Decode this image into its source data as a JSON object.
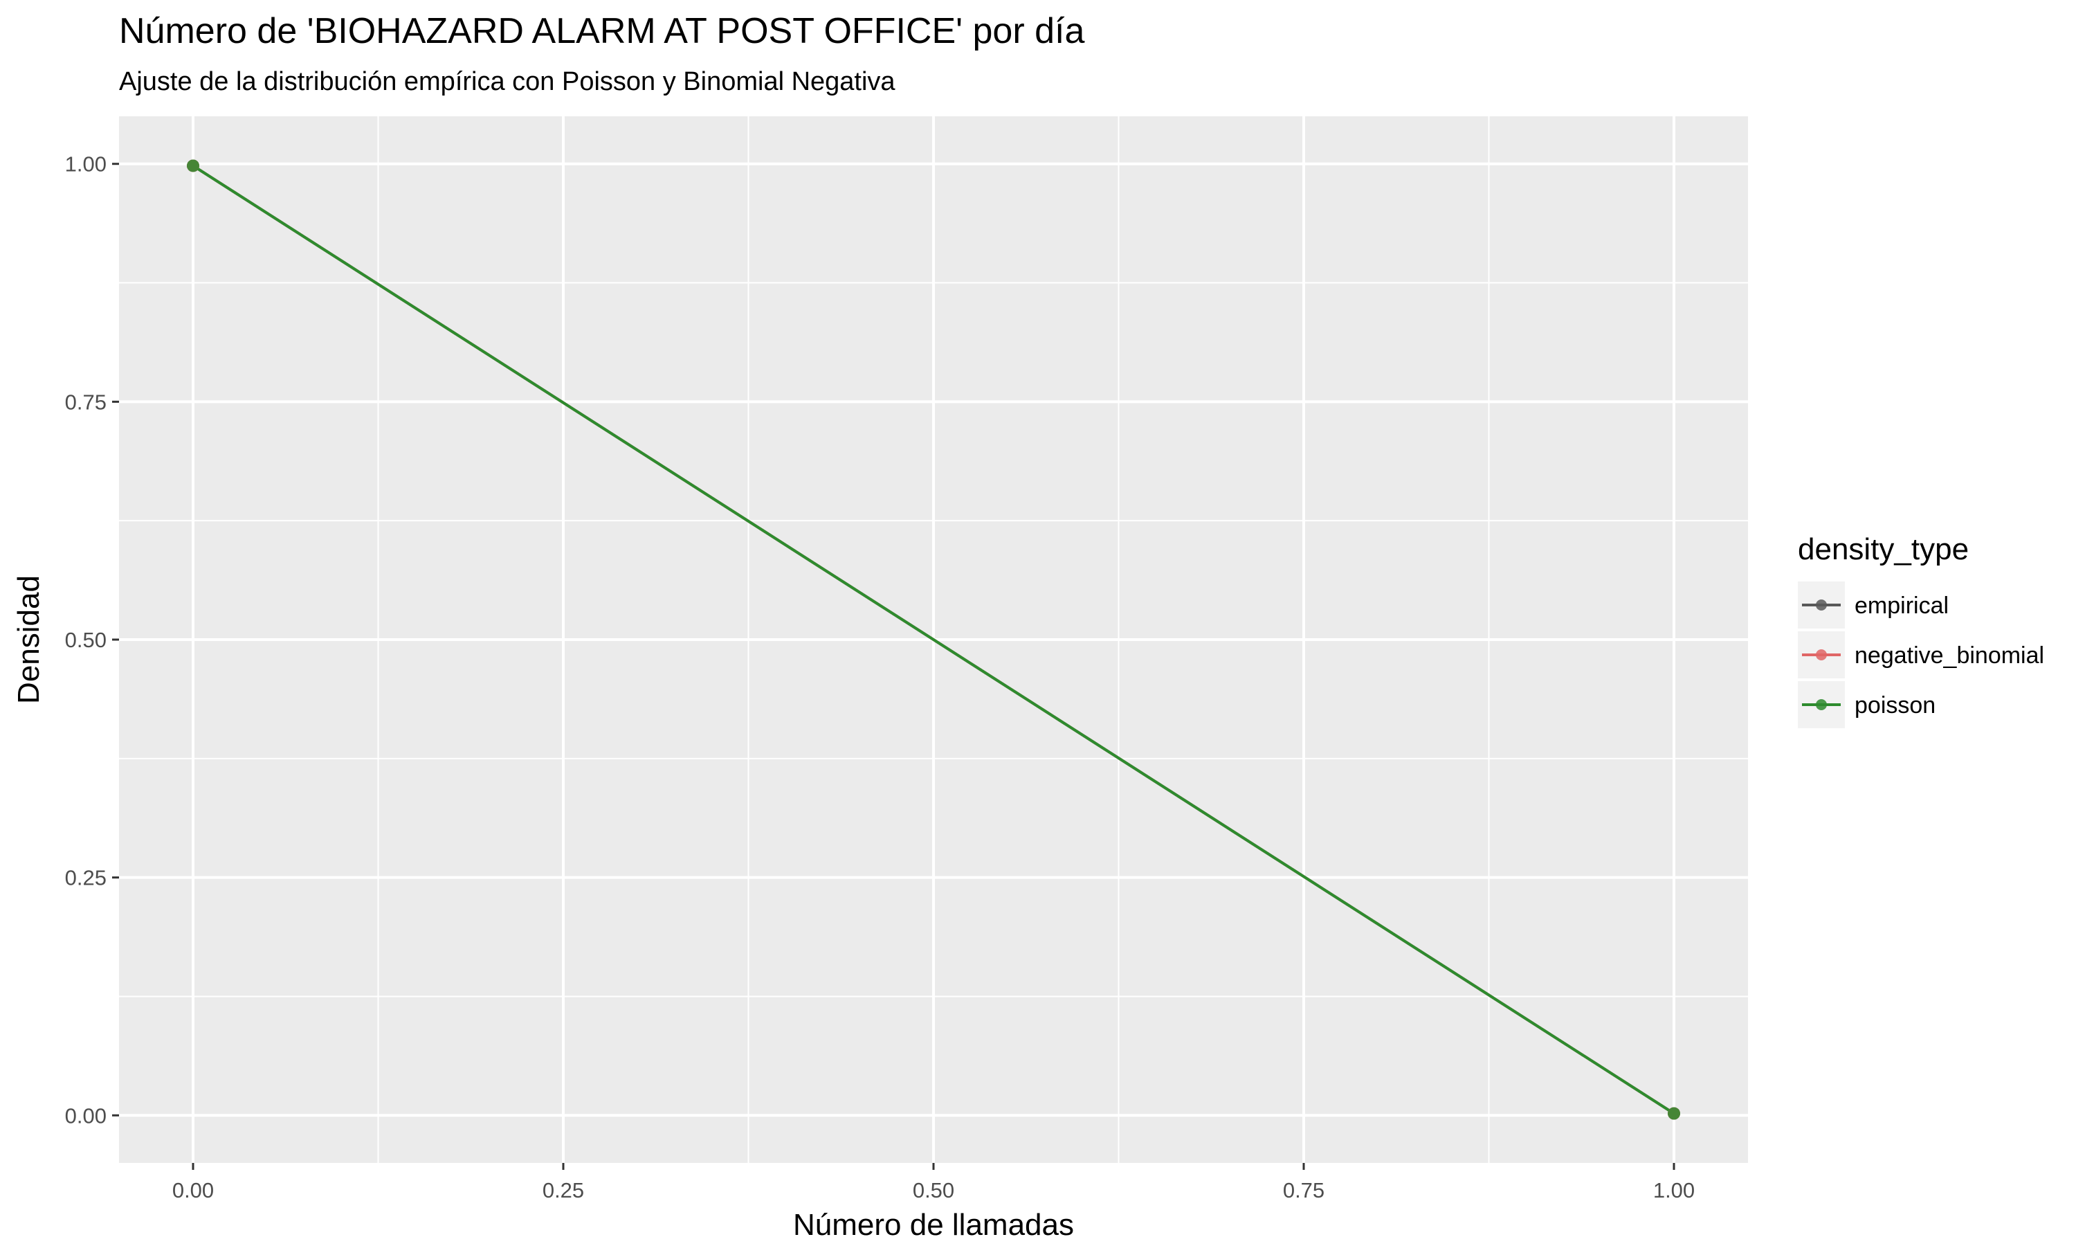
{
  "chart_data": {
    "type": "line",
    "title": "Número de 'BIOHAZARD ALARM AT POST OFFICE' por día",
    "subtitle": "Ajuste de la distribución empírica con Poisson y Binomial Negativa",
    "xlabel": "Número de llamadas",
    "ylabel": "Densidad",
    "xlim": [
      -0.05,
      1.05
    ],
    "ylim": [
      -0.05,
      1.05
    ],
    "x_ticks": [
      0,
      0.25,
      0.5,
      0.75,
      1
    ],
    "x_tick_labels": [
      "0.00",
      "0.25",
      "0.50",
      "0.75",
      "1.00"
    ],
    "y_ticks": [
      0,
      0.25,
      0.5,
      0.75,
      1
    ],
    "y_tick_labels": [
      "0.00",
      "0.25",
      "0.50",
      "0.75",
      "1.00"
    ],
    "grid": true,
    "panel_background": "#ebebeb",
    "legend": {
      "title": "density_type",
      "position": "right"
    },
    "series": [
      {
        "name": "empirical",
        "color": "#595959",
        "x": [
          0,
          1
        ],
        "y": [
          0.998,
          0.002
        ]
      },
      {
        "name": "negative_binomial",
        "color": "#e06666",
        "x": [
          0,
          1
        ],
        "y": [
          0.998,
          0.002
        ]
      },
      {
        "name": "poisson",
        "color": "#2e8b2e",
        "x": [
          0,
          1
        ],
        "y": [
          0.998,
          0.002
        ]
      }
    ]
  }
}
